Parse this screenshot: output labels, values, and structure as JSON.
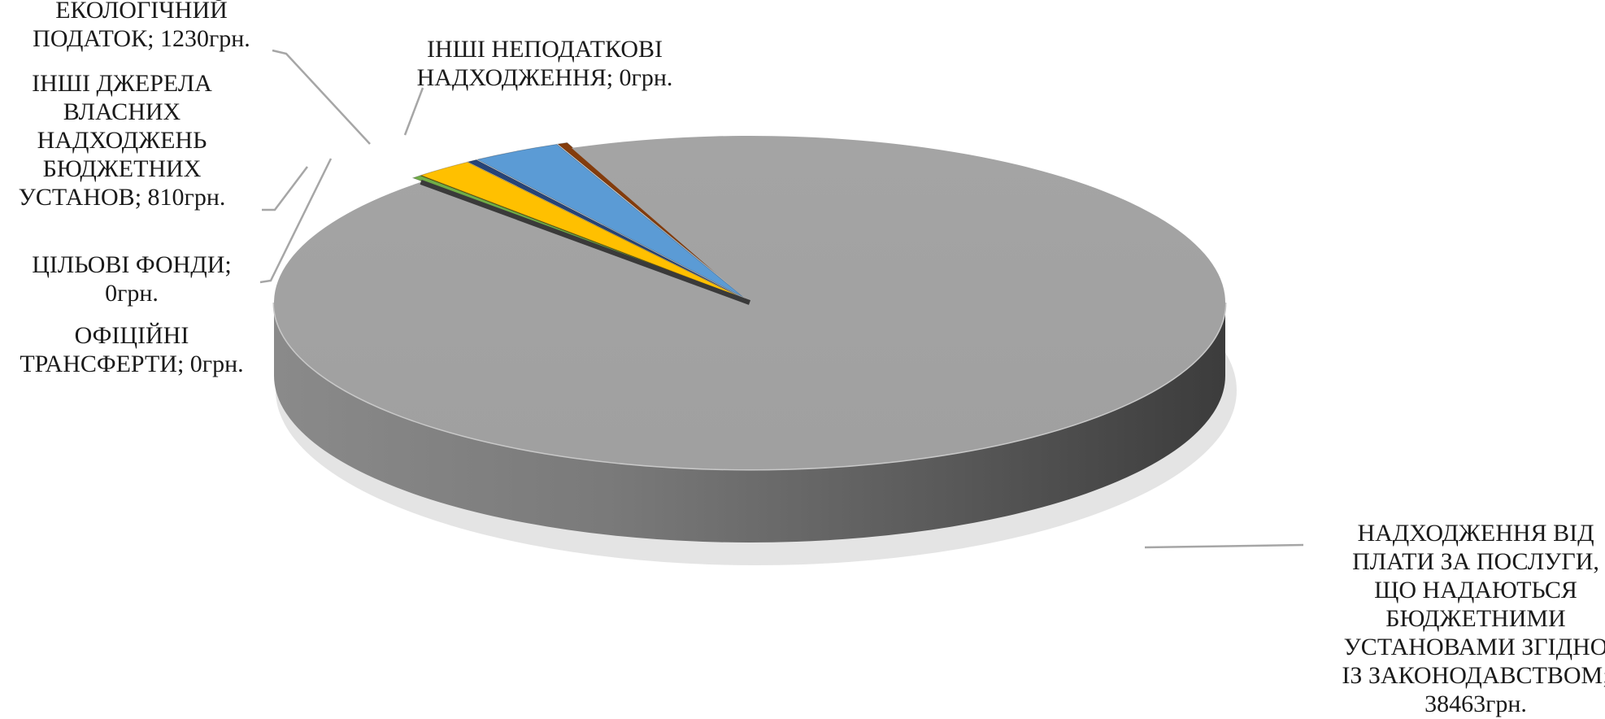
{
  "chart_data": {
    "type": "pie",
    "style": "3d-exploded",
    "title": "",
    "unit": "грн.",
    "slices": [
      {
        "label_lines": [
          "НАДХОДЖЕННЯ ВІД",
          "ПЛАТИ ЗА ПОСЛУГИ,",
          "ЩО НАДАЮТЬСЯ",
          "БЮДЖЕТНИМИ",
          "УСТАНОВАМИ ЗГІДНО",
          "ІЗ ЗАКОНОДАВСТВОМ;",
          "38463грн."
        ],
        "value": 38463,
        "color": "#a6a6a6"
      },
      {
        "label_lines": [
          "ІНШІ НЕПОДАТКОВІ",
          "НАДХОДЖЕННЯ; 0грн."
        ],
        "value": 0,
        "color": "#843c0c"
      },
      {
        "label_lines": [
          "ЕКОЛОГІЧНИЙ",
          "ПОДАТОК; 1230грн."
        ],
        "value": 1230,
        "color": "#5b9bd5"
      },
      {
        "label_lines": [
          "ЦІЛЬОВІ ФОНДИ;",
          "0грн."
        ],
        "value": 0,
        "color": "#264478"
      },
      {
        "label_lines": [
          "ІНШІ ДЖЕРЕЛА",
          "ВЛАСНИХ",
          "НАДХОДЖЕНЬ",
          "БЮДЖЕТНИХ",
          "УСТАНОВ; 810грн."
        ],
        "value": 810,
        "color": "#ffc000"
      },
      {
        "label_lines": [
          "ОФІЦІЙНІ",
          "ТРАНСФЕРТИ; 0грн."
        ],
        "value": 0,
        "color": "#70ad47"
      }
    ]
  }
}
